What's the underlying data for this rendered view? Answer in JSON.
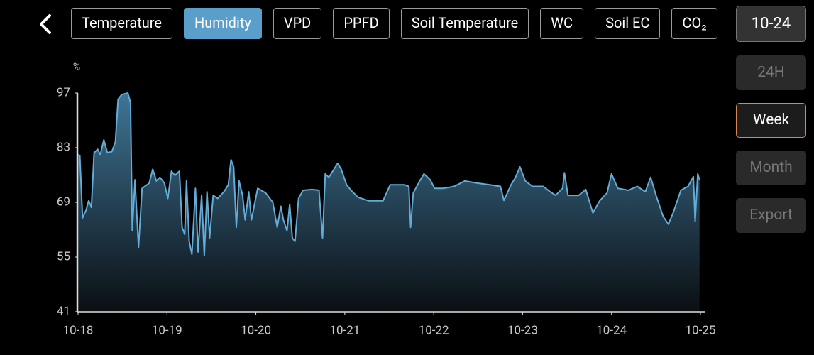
{
  "tabs": [
    "Temperature",
    "Humidity",
    "VPD",
    "PPFD",
    "Soil Temperature",
    "WC",
    "Soil EC",
    "CO₂"
  ],
  "active_tab": 1,
  "date_button": "10-24",
  "range_buttons": [
    "24H",
    "Week",
    "Month",
    "Export"
  ],
  "active_range": 1,
  "chart_data": {
    "type": "area",
    "y_label": "%",
    "color": "#62acd8",
    "xlim": [
      18,
      25
    ],
    "xticks": [
      {
        "value": 18,
        "label": "10-18"
      },
      {
        "value": 19,
        "label": "10-19"
      },
      {
        "value": 20,
        "label": "10-20"
      },
      {
        "value": 21,
        "label": "10-21"
      },
      {
        "value": 22,
        "label": "10-22"
      },
      {
        "value": 23,
        "label": "10-23"
      },
      {
        "value": 24,
        "label": "10-24"
      },
      {
        "value": 25,
        "label": "10-25"
      }
    ],
    "ylim": [
      41,
      97
    ],
    "yticks": [
      41,
      55,
      69,
      83,
      97
    ],
    "x": [
      18.0,
      18.02,
      18.05,
      18.09,
      18.12,
      18.15,
      18.18,
      18.22,
      18.25,
      18.29,
      18.33,
      18.38,
      18.42,
      18.45,
      18.49,
      18.56,
      18.59,
      18.61,
      18.64,
      18.68,
      18.72,
      18.8,
      18.84,
      18.88,
      18.92,
      18.97,
      19.01,
      19.05,
      19.09,
      19.14,
      19.17,
      19.2,
      19.22,
      19.25,
      19.28,
      19.32,
      19.35,
      19.39,
      19.42,
      19.45,
      19.48,
      19.52,
      19.57,
      19.64,
      19.69,
      19.72,
      19.75,
      19.78,
      19.81,
      19.85,
      19.88,
      19.92,
      19.95,
      19.98,
      20.02,
      20.11,
      20.19,
      20.24,
      20.28,
      20.31,
      20.35,
      20.38,
      20.41,
      20.44,
      20.48,
      20.53,
      20.63,
      20.71,
      20.75,
      20.78,
      20.82,
      20.87,
      20.92,
      20.96,
      21.02,
      21.07,
      21.15,
      21.27,
      21.43,
      21.51,
      21.67,
      21.72,
      21.74,
      21.77,
      21.85,
      21.89,
      21.96,
      22.01,
      22.11,
      22.23,
      22.35,
      22.47,
      22.63,
      22.75,
      22.79,
      22.87,
      22.92,
      22.97,
      23.03,
      23.11,
      23.23,
      23.31,
      23.37,
      23.45,
      23.47,
      23.51,
      23.63,
      23.71,
      23.79,
      23.87,
      23.95,
      24.0,
      24.07,
      24.19,
      24.29,
      24.38,
      24.44,
      24.5,
      24.58,
      24.64,
      24.7,
      24.78,
      24.86,
      24.92,
      24.94,
      24.97,
      24.99
    ],
    "values": [
      81.2,
      81,
      65,
      67,
      69.5,
      67.7,
      81.7,
      82.6,
      81.2,
      85,
      81.7,
      82,
      84.5,
      95.4,
      96.6,
      97,
      94.5,
      61.7,
      74.8,
      57.5,
      72.6,
      73.9,
      77.5,
      74.5,
      75.4,
      74,
      70,
      77,
      75.9,
      77,
      62.6,
      60.8,
      74.5,
      59,
      55.7,
      72.6,
      56.3,
      70.8,
      55.4,
      71.7,
      59.9,
      70.8,
      70,
      71.7,
      73.5,
      79.9,
      78,
      62.6,
      74.5,
      70.8,
      64.5,
      71.7,
      64.5,
      68,
      72.6,
      71.4,
      69,
      62.6,
      68,
      64.5,
      61.7,
      68.5,
      59.9,
      59,
      70,
      72.1,
      72.3,
      72.1,
      59.9,
      76.3,
      75.4,
      77.2,
      79,
      77.5,
      73.5,
      72.1,
      70.3,
      69.4,
      69.4,
      73.5,
      73.5,
      73.1,
      62.6,
      71.4,
      74.8,
      76.3,
      74.8,
      72.6,
      72.6,
      73.1,
      74.5,
      74,
      73.5,
      73.1,
      69.5,
      73.5,
      75.4,
      78.1,
      74.5,
      73.1,
      73.1,
      71.7,
      70.8,
      72.6,
      76.6,
      70.8,
      70.8,
      72.3,
      66.3,
      69.5,
      71.4,
      76.3,
      72.6,
      72.1,
      73.1,
      71.7,
      75.4,
      70.8,
      65.4,
      63.4,
      66.7,
      72.1,
      73.1,
      75.6,
      64.1,
      76.3,
      74.8
    ]
  }
}
